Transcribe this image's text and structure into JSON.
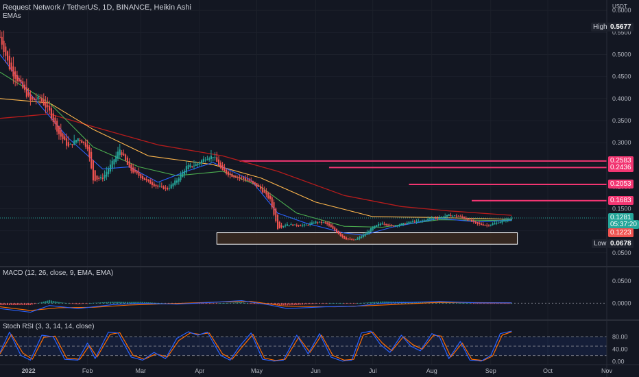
{
  "header": {
    "title": "Request Network / TetherUS, 1D, BINANCE, Heikin Ashi",
    "indicator": "EMAs"
  },
  "price_axis": {
    "unit": "USDT",
    "ticks": [
      "0.6000",
      "0.5500",
      "0.5000",
      "0.4500",
      "0.4000",
      "0.3500",
      "0.3000",
      "0.2500",
      "0.2000",
      "0.1500",
      "0.1000",
      "0.0500"
    ]
  },
  "high_label": {
    "text": "High",
    "value": "0.5677"
  },
  "low_label": {
    "text": "Low",
    "value": "0.0678"
  },
  "last_price": {
    "value": "0.1281",
    "countdown": "05:37:20"
  },
  "prev_close_value": "0.1223",
  "levels": [
    {
      "value": "0.2583",
      "start": "2022-04-22"
    },
    {
      "value": "0.2436",
      "start": "2022-06-08"
    },
    {
      "value": "0.2053",
      "start": "2022-07-20"
    },
    {
      "value": "0.1683",
      "start": "2022-08-22"
    }
  ],
  "support_zone": {
    "low": 0.0695,
    "high": 0.0955,
    "start": "2022-04-10",
    "end": "2022-09-15"
  },
  "macd": {
    "title": "MACD (12, 26, close, 9, EMA, EMA)",
    "ticks": [
      "0.0500",
      "0.0000"
    ]
  },
  "stoch": {
    "title": "Stoch RSI (3, 3, 14, 14, close)",
    "ticks": [
      "80.00",
      "40.00",
      "0.00"
    ]
  },
  "time_axis": {
    "labels": [
      "2022",
      "Feb",
      "Mar",
      "Apr",
      "May",
      "Jun",
      "Jul",
      "Aug",
      "Sep",
      "Oct",
      "Nov"
    ]
  },
  "colors": {
    "background": "#131722",
    "up": "#26a69a",
    "down": "#ef5350",
    "level": "#f23672",
    "ema_short": "#2962ff",
    "ema_mid": "#4caf50",
    "ema_long_a": "#ffb74d",
    "ema_long_b": "#b71c1c",
    "zone_fill": "#3b2a20",
    "zone_border": "#ffffff"
  },
  "chart_data": {
    "type": "candlestick",
    "title": "Request Network / TetherUS, 1D, BINANCE, Heikin Ashi",
    "x_range": [
      "2021-12-17",
      "2022-11-01"
    ],
    "y_range": [
      0.045,
      0.605
    ],
    "price_path": [
      [
        "2021-12-17",
        0.54
      ],
      [
        "2021-12-22",
        0.47
      ],
      [
        "2021-12-28",
        0.43
      ],
      [
        "2022-01-02",
        0.395
      ],
      [
        "2022-01-07",
        0.4
      ],
      [
        "2022-01-12",
        0.37
      ],
      [
        "2022-01-17",
        0.32
      ],
      [
        "2022-01-22",
        0.29
      ],
      [
        "2022-01-27",
        0.31
      ],
      [
        "2022-02-01",
        0.29
      ],
      [
        "2022-02-04",
        0.215
      ],
      [
        "2022-02-09",
        0.22
      ],
      [
        "2022-02-14",
        0.255
      ],
      [
        "2022-02-18",
        0.285
      ],
      [
        "2022-02-23",
        0.24
      ],
      [
        "2022-02-28",
        0.225
      ],
      [
        "2022-03-05",
        0.21
      ],
      [
        "2022-03-10",
        0.2
      ],
      [
        "2022-03-15",
        0.195
      ],
      [
        "2022-03-20",
        0.215
      ],
      [
        "2022-03-25",
        0.245
      ],
      [
        "2022-03-30",
        0.25
      ],
      [
        "2022-04-04",
        0.265
      ],
      [
        "2022-04-08",
        0.27
      ],
      [
        "2022-04-13",
        0.235
      ],
      [
        "2022-04-18",
        0.225
      ],
      [
        "2022-04-23",
        0.22
      ],
      [
        "2022-04-28",
        0.21
      ],
      [
        "2022-05-03",
        0.195
      ],
      [
        "2022-05-08",
        0.17
      ],
      [
        "2022-05-12",
        0.105
      ],
      [
        "2022-05-17",
        0.115
      ],
      [
        "2022-05-22",
        0.112
      ],
      [
        "2022-05-27",
        0.113
      ],
      [
        "2022-06-01",
        0.12
      ],
      [
        "2022-06-06",
        0.118
      ],
      [
        "2022-06-11",
        0.1
      ],
      [
        "2022-06-16",
        0.082
      ],
      [
        "2022-06-21",
        0.078
      ],
      [
        "2022-06-26",
        0.09
      ],
      [
        "2022-07-01",
        0.108
      ],
      [
        "2022-07-06",
        0.118
      ],
      [
        "2022-07-11",
        0.11
      ],
      [
        "2022-07-16",
        0.115
      ],
      [
        "2022-07-21",
        0.12
      ],
      [
        "2022-07-26",
        0.122
      ],
      [
        "2022-07-31",
        0.128
      ],
      [
        "2022-08-05",
        0.13
      ],
      [
        "2022-08-10",
        0.135
      ],
      [
        "2022-08-15",
        0.133
      ],
      [
        "2022-08-20",
        0.125
      ],
      [
        "2022-08-25",
        0.115
      ],
      [
        "2022-08-30",
        0.112
      ],
      [
        "2022-09-04",
        0.118
      ],
      [
        "2022-09-09",
        0.125
      ],
      [
        "2022-09-12",
        0.128
      ]
    ],
    "ema_fast": [
      [
        "2021-12-17",
        0.5
      ],
      [
        "2022-01-02",
        0.41
      ],
      [
        "2022-01-22",
        0.31
      ],
      [
        "2022-02-09",
        0.24
      ],
      [
        "2022-02-23",
        0.245
      ],
      [
        "2022-03-10",
        0.21
      ],
      [
        "2022-03-25",
        0.235
      ],
      [
        "2022-04-08",
        0.255
      ],
      [
        "2022-04-28",
        0.215
      ],
      [
        "2022-05-12",
        0.14
      ],
      [
        "2022-05-27",
        0.117
      ],
      [
        "2022-06-16",
        0.095
      ],
      [
        "2022-06-26",
        0.09
      ],
      [
        "2022-07-11",
        0.108
      ],
      [
        "2022-08-05",
        0.128
      ],
      [
        "2022-08-25",
        0.12
      ],
      [
        "2022-09-12",
        0.124
      ]
    ],
    "ema_mid": [
      [
        "2021-12-17",
        0.46
      ],
      [
        "2022-01-12",
        0.39
      ],
      [
        "2022-02-04",
        0.29
      ],
      [
        "2022-02-28",
        0.245
      ],
      [
        "2022-03-20",
        0.225
      ],
      [
        "2022-04-13",
        0.235
      ],
      [
        "2022-05-03",
        0.2
      ],
      [
        "2022-05-22",
        0.14
      ],
      [
        "2022-06-16",
        0.11
      ],
      [
        "2022-07-06",
        0.108
      ],
      [
        "2022-08-05",
        0.125
      ],
      [
        "2022-09-12",
        0.123
      ]
    ],
    "ema_long_a": [
      [
        "2021-12-17",
        0.4
      ],
      [
        "2022-01-12",
        0.39
      ],
      [
        "2022-02-04",
        0.33
      ],
      [
        "2022-03-05",
        0.27
      ],
      [
        "2022-04-08",
        0.25
      ],
      [
        "2022-05-03",
        0.22
      ],
      [
        "2022-06-01",
        0.165
      ],
      [
        "2022-07-01",
        0.132
      ],
      [
        "2022-08-05",
        0.13
      ],
      [
        "2022-09-12",
        0.126
      ]
    ],
    "ema_long_b": [
      [
        "2021-12-17",
        0.355
      ],
      [
        "2022-01-12",
        0.365
      ],
      [
        "2022-02-09",
        0.33
      ],
      [
        "2022-03-10",
        0.295
      ],
      [
        "2022-04-13",
        0.27
      ],
      [
        "2022-05-12",
        0.235
      ],
      [
        "2022-06-16",
        0.18
      ],
      [
        "2022-07-16",
        0.155
      ],
      [
        "2022-08-10",
        0.145
      ],
      [
        "2022-09-12",
        0.135
      ]
    ],
    "macd_line": [
      [
        "2021-12-17",
        -0.012
      ],
      [
        "2022-01-02",
        -0.02
      ],
      [
        "2022-01-12",
        -0.005
      ],
      [
        "2022-01-27",
        -0.012
      ],
      [
        "2022-02-14",
        -0.003
      ],
      [
        "2022-03-01",
        0.0
      ],
      [
        "2022-03-20",
        -0.002
      ],
      [
        "2022-04-08",
        0.002
      ],
      [
        "2022-04-23",
        0.006
      ],
      [
        "2022-05-08",
        -0.004
      ],
      [
        "2022-05-17",
        -0.012
      ],
      [
        "2022-06-06",
        -0.008
      ],
      [
        "2022-06-21",
        -0.007
      ],
      [
        "2022-07-06",
        0.0
      ],
      [
        "2022-08-05",
        0.004
      ],
      [
        "2022-08-25",
        0.001
      ],
      [
        "2022-09-12",
        0.001
      ]
    ],
    "macd_signal": [
      [
        "2021-12-17",
        -0.008
      ],
      [
        "2022-01-02",
        -0.016
      ],
      [
        "2022-01-17",
        -0.01
      ],
      [
        "2022-02-04",
        -0.009
      ],
      [
        "2022-02-23",
        -0.004
      ],
      [
        "2022-03-15",
        -0.001
      ],
      [
        "2022-04-13",
        0.003
      ],
      [
        "2022-04-28",
        0.004
      ],
      [
        "2022-05-17",
        -0.007
      ],
      [
        "2022-06-11",
        -0.008
      ],
      [
        "2022-07-01",
        -0.005
      ],
      [
        "2022-08-05",
        0.002
      ],
      [
        "2022-09-12",
        0.001
      ]
    ],
    "stoch_k": [
      [
        "2021-12-17",
        30
      ],
      [
        "2021-12-22",
        95
      ],
      [
        "2021-12-28",
        20
      ],
      [
        "2022-01-02",
        5
      ],
      [
        "2022-01-08",
        85
      ],
      [
        "2022-01-14",
        80
      ],
      [
        "2022-01-20",
        8
      ],
      [
        "2022-01-27",
        5
      ],
      [
        "2022-02-01",
        60
      ],
      [
        "2022-02-05",
        10
      ],
      [
        "2022-02-12",
        95
      ],
      [
        "2022-02-17",
        92
      ],
      [
        "2022-02-24",
        15
      ],
      [
        "2022-03-02",
        5
      ],
      [
        "2022-03-08",
        30
      ],
      [
        "2022-03-14",
        10
      ],
      [
        "2022-03-20",
        75
      ],
      [
        "2022-03-26",
        96
      ],
      [
        "2022-03-31",
        85
      ],
      [
        "2022-04-05",
        95
      ],
      [
        "2022-04-12",
        20
      ],
      [
        "2022-04-17",
        5
      ],
      [
        "2022-04-22",
        50
      ],
      [
        "2022-04-28",
        92
      ],
      [
        "2022-05-04",
        8
      ],
      [
        "2022-05-10",
        2
      ],
      [
        "2022-05-15",
        5
      ],
      [
        "2022-05-22",
        85
      ],
      [
        "2022-05-28",
        25
      ],
      [
        "2022-06-03",
        90
      ],
      [
        "2022-06-09",
        15
      ],
      [
        "2022-06-15",
        2
      ],
      [
        "2022-06-20",
        5
      ],
      [
        "2022-06-25",
        92
      ],
      [
        "2022-06-30",
        98
      ],
      [
        "2022-07-05",
        55
      ],
      [
        "2022-07-10",
        30
      ],
      [
        "2022-07-16",
        85
      ],
      [
        "2022-07-21",
        50
      ],
      [
        "2022-07-26",
        35
      ],
      [
        "2022-08-01",
        90
      ],
      [
        "2022-08-05",
        80
      ],
      [
        "2022-08-10",
        10
      ],
      [
        "2022-08-16",
        65
      ],
      [
        "2022-08-21",
        5
      ],
      [
        "2022-08-27",
        2
      ],
      [
        "2022-09-01",
        20
      ],
      [
        "2022-09-06",
        90
      ],
      [
        "2022-09-12",
        98
      ]
    ],
    "stoch_d": [
      [
        "2021-12-17",
        25
      ],
      [
        "2021-12-23",
        88
      ],
      [
        "2021-12-29",
        28
      ],
      [
        "2022-01-03",
        8
      ],
      [
        "2022-01-09",
        78
      ],
      [
        "2022-01-15",
        82
      ],
      [
        "2022-01-21",
        12
      ],
      [
        "2022-01-28",
        8
      ],
      [
        "2022-02-02",
        52
      ],
      [
        "2022-02-06",
        15
      ],
      [
        "2022-02-13",
        88
      ],
      [
        "2022-02-18",
        93
      ],
      [
        "2022-02-25",
        20
      ],
      [
        "2022-03-03",
        8
      ],
      [
        "2022-03-09",
        25
      ],
      [
        "2022-03-15",
        15
      ],
      [
        "2022-03-21",
        68
      ],
      [
        "2022-03-27",
        92
      ],
      [
        "2022-04-01",
        88
      ],
      [
        "2022-04-06",
        92
      ],
      [
        "2022-04-13",
        25
      ],
      [
        "2022-04-18",
        8
      ],
      [
        "2022-04-23",
        45
      ],
      [
        "2022-04-29",
        88
      ],
      [
        "2022-05-05",
        12
      ],
      [
        "2022-05-11",
        4
      ],
      [
        "2022-05-16",
        8
      ],
      [
        "2022-05-23",
        78
      ],
      [
        "2022-05-29",
        30
      ],
      [
        "2022-06-04",
        85
      ],
      [
        "2022-06-10",
        20
      ],
      [
        "2022-06-16",
        5
      ],
      [
        "2022-06-21",
        8
      ],
      [
        "2022-06-26",
        85
      ],
      [
        "2022-07-01",
        95
      ],
      [
        "2022-07-06",
        60
      ],
      [
        "2022-07-11",
        35
      ],
      [
        "2022-07-17",
        80
      ],
      [
        "2022-07-22",
        55
      ],
      [
        "2022-07-27",
        40
      ],
      [
        "2022-08-02",
        85
      ],
      [
        "2022-08-06",
        82
      ],
      [
        "2022-08-11",
        15
      ],
      [
        "2022-08-17",
        60
      ],
      [
        "2022-08-22",
        8
      ],
      [
        "2022-08-28",
        4
      ],
      [
        "2022-09-02",
        18
      ],
      [
        "2022-09-07",
        85
      ],
      [
        "2022-09-12",
        96
      ]
    ],
    "macd_range": [
      -0.03,
      0.068
    ],
    "stoch_range": [
      -5,
      118
    ]
  }
}
